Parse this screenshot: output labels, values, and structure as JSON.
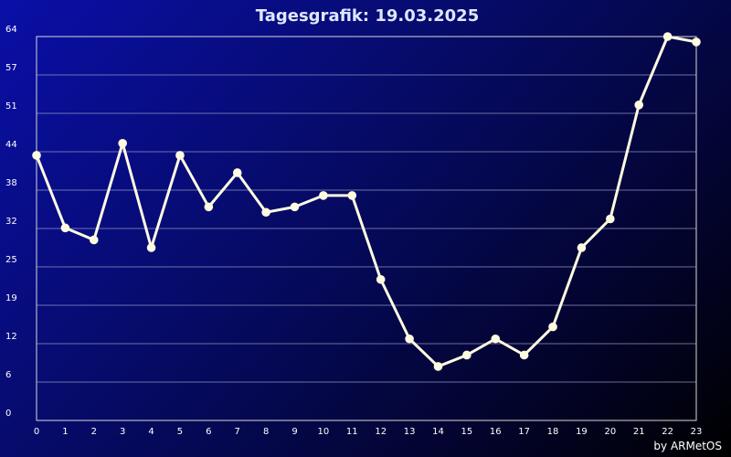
{
  "chart_data": {
    "type": "line",
    "title": "Tagesgrafik: 19.03.2025",
    "xlabel": "",
    "ylabel": "",
    "credit": "by ARMetOS",
    "x": [
      "0",
      "1",
      "2",
      "3",
      "4",
      "5",
      "6",
      "7",
      "8",
      "9",
      "10",
      "11",
      "12",
      "13",
      "14",
      "15",
      "16",
      "17",
      "18",
      "19",
      "20",
      "21",
      "22",
      "23"
    ],
    "y_ticks": [
      0,
      6,
      12,
      19,
      25,
      32,
      38,
      44,
      51,
      57,
      64
    ],
    "ylim": [
      0,
      64
    ],
    "grid": true,
    "series": [
      {
        "values": [
          44.2,
          32.1,
          30.1,
          46.2,
          28.8,
          44.2,
          35.6,
          41.3,
          34.7,
          35.6,
          37.5,
          37.5,
          23.5,
          13.6,
          9.0,
          10.9,
          13.6,
          10.9,
          15.6,
          28.8,
          33.6,
          52.6,
          64.0,
          63.1
        ],
        "color": "#fffbe0"
      }
    ]
  }
}
